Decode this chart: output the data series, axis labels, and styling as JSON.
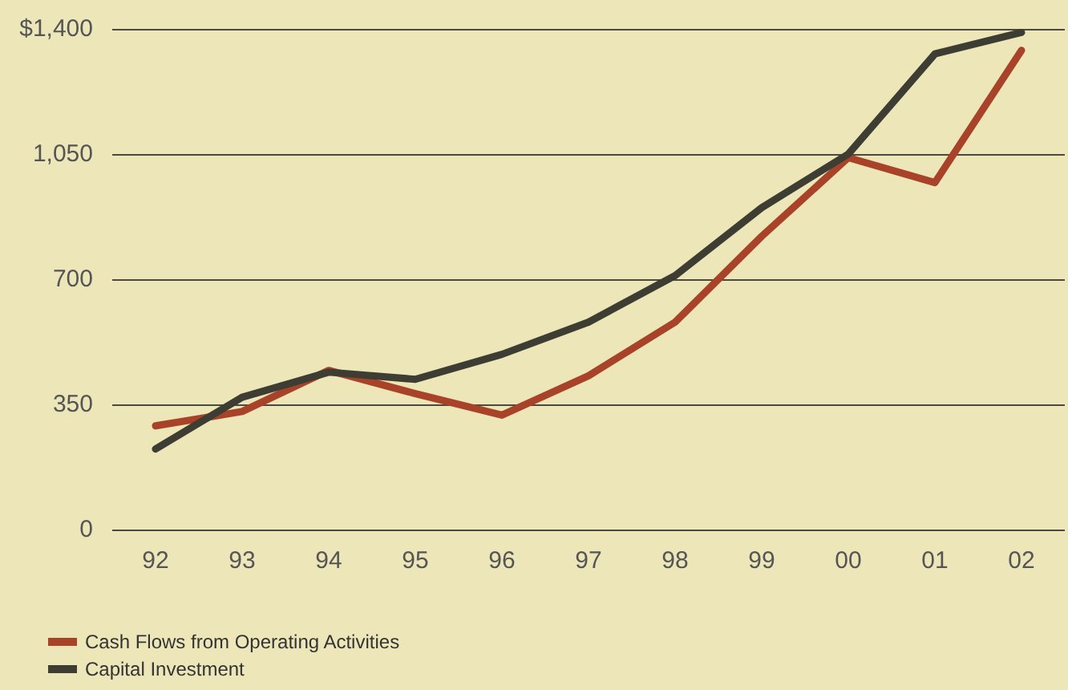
{
  "chart_data": {
    "type": "line",
    "categories": [
      "92",
      "93",
      "94",
      "95",
      "96",
      "97",
      "98",
      "99",
      "00",
      "01",
      "02"
    ],
    "series": [
      {
        "name": "Cash Flows from Operating Activities",
        "color": "#a8432a",
        "values": [
          290,
          330,
          445,
          380,
          320,
          430,
          580,
          820,
          1040,
          970,
          1340
        ]
      },
      {
        "name": "Capital Investment",
        "color": "#3d3d33",
        "values": [
          225,
          370,
          440,
          420,
          490,
          580,
          710,
          900,
          1050,
          1330,
          1390
        ]
      }
    ],
    "ylim": [
      0,
      1400
    ],
    "yticks": [
      0,
      350,
      700,
      {
        "value": 1050,
        "label": "1,050"
      },
      {
        "value": 1400,
        "label": "$1,400"
      }
    ],
    "grid": "y",
    "legend": "bottom left",
    "marker": "none",
    "line_style": "solid"
  }
}
